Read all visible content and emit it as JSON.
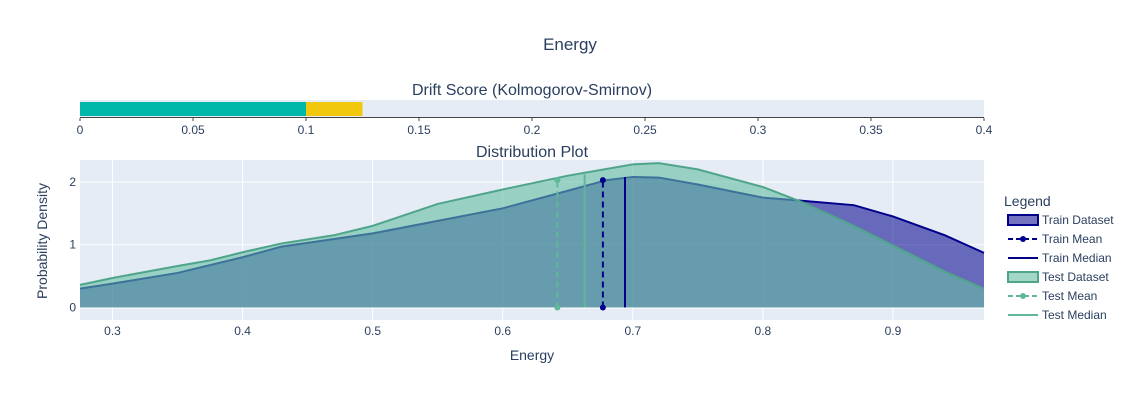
{
  "title": "Energy",
  "chart_data": [
    {
      "type": "bar",
      "title": "Drift Score (Kolmogorov-Smirnov)",
      "orientation": "horizontal",
      "xlim": [
        0,
        0.4
      ],
      "x_ticks": [
        "0",
        "0.05",
        "0.1",
        "0.15",
        "0.2",
        "0.25",
        "0.3",
        "0.35",
        "0.4"
      ],
      "x_tick_values": [
        0,
        0.05,
        0.1,
        0.15,
        0.2,
        0.25,
        0.3,
        0.35,
        0.4
      ],
      "segments": [
        {
          "from": 0,
          "to": 0.1,
          "color": "#00b8a9"
        },
        {
          "from": 0.1,
          "to": 0.125,
          "color": "#f2c80f"
        }
      ]
    },
    {
      "type": "area",
      "title": "Distribution Plot",
      "xlabel": "Energy",
      "ylabel": "Probability Density",
      "xlim": [
        0.275,
        0.97
      ],
      "ylim": [
        -0.2,
        2.35
      ],
      "x_ticks": [
        "0.3",
        "0.4",
        "0.5",
        "0.6",
        "0.7",
        "0.8",
        "0.9"
      ],
      "x_tick_values": [
        0.3,
        0.4,
        0.5,
        0.6,
        0.7,
        0.8,
        0.9
      ],
      "y_ticks": [
        "0",
        "1",
        "2"
      ],
      "y_tick_values": [
        0,
        1,
        2
      ],
      "grid": true,
      "legend": {
        "title": "Legend",
        "placement": "right",
        "items": [
          "Train Dataset",
          "Train Mean",
          "Train Median",
          "Test Dataset",
          "Test Mean",
          "Test Median"
        ]
      },
      "series": [
        {
          "name": "Train Dataset",
          "color": "#00008b",
          "fill": "rgba(0,0,139,0.55)",
          "x": [
            0.275,
            0.3,
            0.35,
            0.4,
            0.43,
            0.45,
            0.5,
            0.55,
            0.6,
            0.65,
            0.68,
            0.7,
            0.72,
            0.75,
            0.8,
            0.83,
            0.87,
            0.9,
            0.94,
            0.97
          ],
          "y": [
            0.3,
            0.38,
            0.55,
            0.8,
            0.97,
            1.03,
            1.18,
            1.38,
            1.58,
            1.86,
            2.03,
            2.08,
            2.07,
            1.96,
            1.75,
            1.7,
            1.63,
            1.45,
            1.15,
            0.87
          ]
        },
        {
          "name": "Test Dataset",
          "color": "#4fa58a",
          "fill": "rgba(102,190,163,0.6)",
          "x": [
            0.275,
            0.3,
            0.35,
            0.375,
            0.4,
            0.43,
            0.47,
            0.5,
            0.55,
            0.6,
            0.65,
            0.7,
            0.72,
            0.75,
            0.8,
            0.83,
            0.87,
            0.9,
            0.94,
            0.97
          ],
          "y": [
            0.36,
            0.47,
            0.66,
            0.75,
            0.88,
            1.02,
            1.15,
            1.3,
            1.65,
            1.88,
            2.1,
            2.28,
            2.3,
            2.2,
            1.92,
            1.68,
            1.3,
            0.99,
            0.57,
            0.3
          ]
        }
      ],
      "markers": [
        {
          "name": "Train Mean",
          "x": 0.677,
          "y_top": 2.03,
          "color": "#00008b",
          "style": "dash"
        },
        {
          "name": "Train Median",
          "x": 0.694,
          "y_top": 2.08,
          "color": "#00008b",
          "style": "solid"
        },
        {
          "name": "Test Mean",
          "x": 0.642,
          "y_top": 2.03,
          "color": "#5fb89b",
          "style": "dash"
        },
        {
          "name": "Test Median",
          "x": 0.663,
          "y_top": 2.12,
          "color": "#5fb89b",
          "style": "solid"
        }
      ]
    }
  ]
}
